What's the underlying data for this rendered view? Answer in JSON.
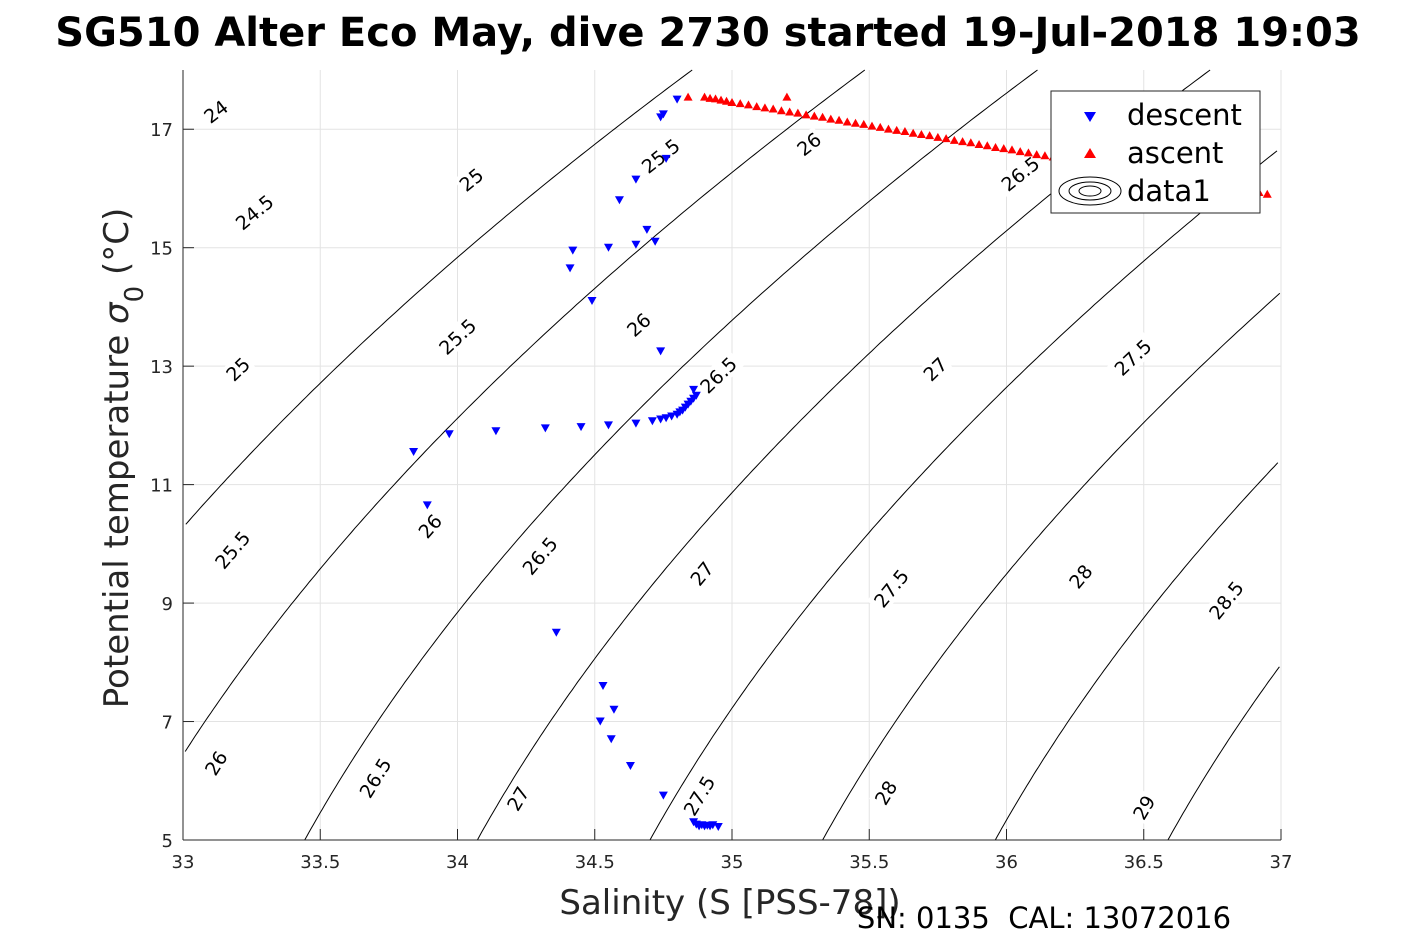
{
  "chart_data": {
    "type": "scatter",
    "title": "SG510 Alter Eco May, dive 2730 started 19-Jul-2018 19:03",
    "xlabel": "Salinity (S [PSS-78])",
    "ylabel": "Potential temperature",
    "ylabel_sigma": "σ",
    "ylabel_sub": "0",
    "ylabel_unit": "(°C)",
    "footer": "SN: 0135  CAL: 13072016",
    "xlim": [
      33,
      37
    ],
    "ylim": [
      5,
      18
    ],
    "xticks": [
      33,
      33.5,
      34,
      34.5,
      35,
      35.5,
      36,
      36.5,
      37
    ],
    "xtick_labels": [
      "33",
      "33.5",
      "34",
      "34.5",
      "35",
      "35.5",
      "36",
      "36.5",
      "37"
    ],
    "yticks": [
      5,
      7,
      9,
      11,
      13,
      15,
      17
    ],
    "ytick_labels": [
      "5",
      "7",
      "9",
      "11",
      "13",
      "15",
      "17"
    ],
    "grid": true,
    "legend_position": "top-right",
    "legend": [
      "descent",
      "ascent",
      "data1"
    ],
    "contours": {
      "levels": [
        24,
        24.5,
        25,
        25.5,
        26,
        26.5,
        27,
        27.5,
        28,
        28.5,
        29
      ],
      "labels": [
        {
          "text": "24",
          "s": 33.12,
          "t": 17.3
        },
        {
          "text": "24.5",
          "s": 33.26,
          "t": 15.6
        },
        {
          "text": "25",
          "s": 34.05,
          "t": 16.15
        },
        {
          "text": "25",
          "s": 33.2,
          "t": 12.95
        },
        {
          "text": "25.5",
          "s": 33.18,
          "t": 9.9
        },
        {
          "text": "25.5",
          "s": 34.0,
          "t": 13.5
        },
        {
          "text": "25.5",
          "s": 34.74,
          "t": 16.55
        },
        {
          "text": "26",
          "s": 33.12,
          "t": 6.3
        },
        {
          "text": "26",
          "s": 33.9,
          "t": 10.3
        },
        {
          "text": "26",
          "s": 34.66,
          "t": 13.7
        },
        {
          "text": "26",
          "s": 35.28,
          "t": 16.75
        },
        {
          "text": "26.5",
          "s": 33.7,
          "t": 6.05
        },
        {
          "text": "26.5",
          "s": 34.3,
          "t": 9.8
        },
        {
          "text": "26.5",
          "s": 34.95,
          "t": 12.85
        },
        {
          "text": "26.5",
          "s": 36.05,
          "t": 16.25
        },
        {
          "text": "27",
          "s": 34.22,
          "t": 5.7
        },
        {
          "text": "27",
          "s": 34.89,
          "t": 9.5
        },
        {
          "text": "27",
          "s": 35.74,
          "t": 12.95
        },
        {
          "text": "27.5",
          "s": 34.88,
          "t": 5.75
        },
        {
          "text": "27.5",
          "s": 35.58,
          "t": 9.25
        },
        {
          "text": "27.5",
          "s": 36.46,
          "t": 13.15
        },
        {
          "text": "28",
          "s": 35.56,
          "t": 5.8
        },
        {
          "text": "28",
          "s": 36.27,
          "t": 9.45
        },
        {
          "text": "28.5",
          "s": 36.8,
          "t": 9.05
        },
        {
          "text": "29",
          "s": 36.5,
          "t": 5.55
        }
      ]
    },
    "series": [
      {
        "name": "descent",
        "color": "#0000ff",
        "marker": "triangle-down",
        "points": [
          [
            34.8,
            17.5
          ],
          [
            34.75,
            17.25
          ],
          [
            34.74,
            17.2
          ],
          [
            34.76,
            16.5
          ],
          [
            34.65,
            16.15
          ],
          [
            34.59,
            15.8
          ],
          [
            34.69,
            15.3
          ],
          [
            34.72,
            15.1
          ],
          [
            34.65,
            15.05
          ],
          [
            34.55,
            15.0
          ],
          [
            34.42,
            14.95
          ],
          [
            34.41,
            14.65
          ],
          [
            34.49,
            14.1
          ],
          [
            34.74,
            13.25
          ],
          [
            34.86,
            12.6
          ],
          [
            34.87,
            12.5
          ],
          [
            34.86,
            12.45
          ],
          [
            34.85,
            12.4
          ],
          [
            34.84,
            12.35
          ],
          [
            34.83,
            12.3
          ],
          [
            34.82,
            12.25
          ],
          [
            34.81,
            12.22
          ],
          [
            34.8,
            12.18
          ],
          [
            34.78,
            12.15
          ],
          [
            34.76,
            12.12
          ],
          [
            34.74,
            12.1
          ],
          [
            34.71,
            12.07
          ],
          [
            34.65,
            12.03
          ],
          [
            34.55,
            12.0
          ],
          [
            34.45,
            11.97
          ],
          [
            34.32,
            11.95
          ],
          [
            34.14,
            11.9
          ],
          [
            33.97,
            11.85
          ],
          [
            33.84,
            11.55
          ],
          [
            33.89,
            10.65
          ],
          [
            34.36,
            8.5
          ],
          [
            34.53,
            7.6
          ],
          [
            34.57,
            7.2
          ],
          [
            34.52,
            7.0
          ],
          [
            34.56,
            6.7
          ],
          [
            34.63,
            6.25
          ],
          [
            34.75,
            5.75
          ],
          [
            34.86,
            5.3
          ],
          [
            34.87,
            5.26
          ],
          [
            34.88,
            5.23
          ],
          [
            34.89,
            5.25
          ],
          [
            34.9,
            5.23
          ],
          [
            34.91,
            5.24
          ],
          [
            34.92,
            5.23
          ],
          [
            34.93,
            5.25
          ],
          [
            34.95,
            5.22
          ]
        ]
      },
      {
        "name": "ascent",
        "color": "#ff0000",
        "marker": "triangle-up",
        "points": [
          [
            34.84,
            17.55
          ],
          [
            35.2,
            17.55
          ],
          [
            34.9,
            17.55
          ],
          [
            34.92,
            17.53
          ],
          [
            34.94,
            17.52
          ],
          [
            34.96,
            17.5
          ],
          [
            34.98,
            17.48
          ],
          [
            35.0,
            17.46
          ],
          [
            35.03,
            17.44
          ],
          [
            35.06,
            17.42
          ],
          [
            35.09,
            17.39
          ],
          [
            35.12,
            17.37
          ],
          [
            35.15,
            17.35
          ],
          [
            35.18,
            17.32
          ],
          [
            35.21,
            17.3
          ],
          [
            35.24,
            17.28
          ],
          [
            35.27,
            17.25
          ],
          [
            35.3,
            17.23
          ],
          [
            35.33,
            17.21
          ],
          [
            35.36,
            17.18
          ],
          [
            35.39,
            17.16
          ],
          [
            35.42,
            17.13
          ],
          [
            35.45,
            17.11
          ],
          [
            35.48,
            17.09
          ],
          [
            35.51,
            17.06
          ],
          [
            35.54,
            17.04
          ],
          [
            35.57,
            17.01
          ],
          [
            35.6,
            16.99
          ],
          [
            35.63,
            16.97
          ],
          [
            35.66,
            16.94
          ],
          [
            35.69,
            16.92
          ],
          [
            35.72,
            16.9
          ],
          [
            35.75,
            16.87
          ],
          [
            35.78,
            16.85
          ],
          [
            35.81,
            16.82
          ],
          [
            35.84,
            16.8
          ],
          [
            35.87,
            16.78
          ],
          [
            35.9,
            16.75
          ],
          [
            35.93,
            16.73
          ],
          [
            35.96,
            16.7
          ],
          [
            35.99,
            16.68
          ],
          [
            36.02,
            16.66
          ],
          [
            36.05,
            16.63
          ],
          [
            36.08,
            16.61
          ],
          [
            36.11,
            16.58
          ],
          [
            36.14,
            16.56
          ],
          [
            36.17,
            16.54
          ],
          [
            36.2,
            16.51
          ],
          [
            36.23,
            16.49
          ],
          [
            36.26,
            16.47
          ],
          [
            36.29,
            16.44
          ],
          [
            36.32,
            16.42
          ],
          [
            36.35,
            16.4
          ],
          [
            36.38,
            16.37
          ],
          [
            36.41,
            16.35
          ],
          [
            36.44,
            16.32
          ],
          [
            36.47,
            16.3
          ],
          [
            36.5,
            16.28
          ],
          [
            36.53,
            16.25
          ],
          [
            36.56,
            16.23
          ],
          [
            36.59,
            16.2
          ],
          [
            36.62,
            16.18
          ],
          [
            36.65,
            16.15
          ],
          [
            36.68,
            16.13
          ],
          [
            36.71,
            16.11
          ],
          [
            36.74,
            16.08
          ],
          [
            36.77,
            16.06
          ],
          [
            36.8,
            16.03
          ],
          [
            36.83,
            16.01
          ],
          [
            36.86,
            15.99
          ],
          [
            36.89,
            15.96
          ],
          [
            36.92,
            15.94
          ],
          [
            36.95,
            15.91
          ]
        ]
      }
    ]
  }
}
